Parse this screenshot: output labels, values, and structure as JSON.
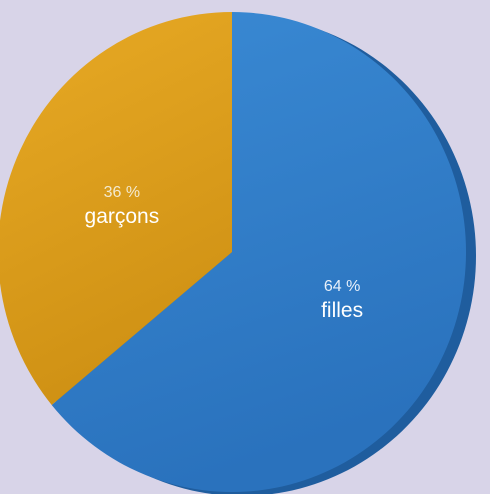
{
  "chart_data": {
    "type": "pie",
    "title": "",
    "slices": [
      {
        "label": "filles",
        "value": 64,
        "value_label": "64 %",
        "color": "#2f7ec9"
      },
      {
        "label": "garçons",
        "value": 36,
        "value_label": "36 %",
        "color": "#e3a320"
      }
    ],
    "start": "12 o'clock",
    "direction": "clockwise",
    "legend": "none",
    "style": "3d-tilt"
  }
}
